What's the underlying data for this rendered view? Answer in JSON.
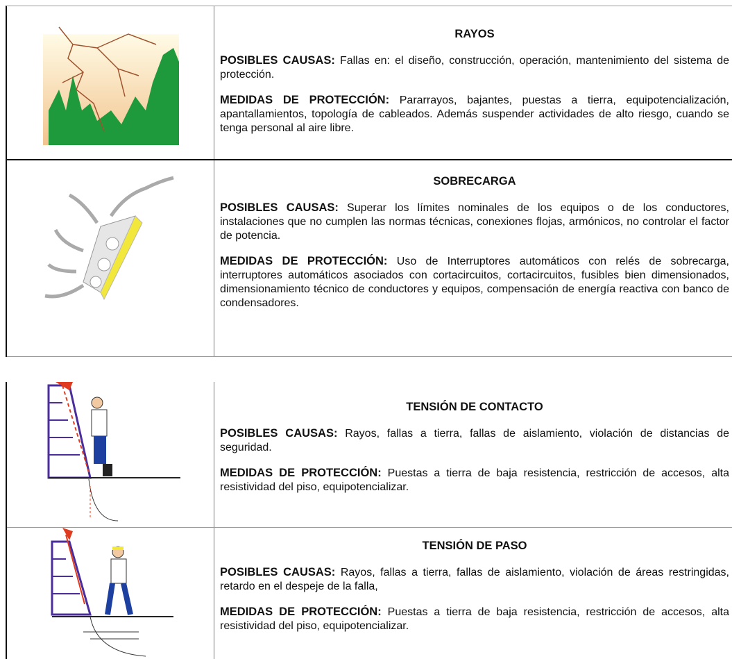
{
  "table": {
    "rows": [
      {
        "title": "RAYOS",
        "causes_label": "POSIBLES CAUSAS:",
        "causes_text": "Fallas en: el diseño, construcción, operación, mantenimiento del sistema de protección.",
        "measures_label": "MEDIDAS DE PROTECCIÓN:",
        "measures_text": "Pararrayos, bajantes, puestas a tierra, equipotencialización, apantallamientos, topología de cableados. Además suspender actividades de alto riesgo, cuando se tenga personal al aire libre."
      },
      {
        "title": "SOBRECARGA",
        "causes_label": "POSIBLES CAUSAS:",
        "causes_text": "Superar los límites nominales de los equipos o de los conductores, instalaciones que no cumplen las normas técnicas, conexiones flojas, armónicos, no controlar el factor de potencia.",
        "measures_label": "MEDIDAS DE PROTECCIÓN:",
        "measures_text": "Uso de Interruptores automáticos con relés de sobrecarga, interruptores automáticos asociados con cortacircuitos, cortacircuitos, fusibles bien dimensionados, dimensionamiento técnico de conductores y equipos, compensación de energía reactiva con banco de condensadores."
      },
      {
        "title": "TENSIÓN DE CONTACTO",
        "causes_label": "POSIBLES CAUSAS:",
        "causes_text": "Rayos, fallas a tierra, fallas de aislamiento, violación de distancias de seguridad.",
        "measures_label": "MEDIDAS DE PROTECCIÓN:",
        "measures_text": "Puestas a tierra de baja resistencia, restricción de accesos, alta resistividad del piso, equipotencializar."
      },
      {
        "title": "TENSIÓN DE PASO",
        "causes_label": "POSIBLES CAUSAS:",
        "causes_text": "Rayos, fallas a tierra, fallas de aislamiento, violación de áreas restringidas, retardo en el despeje de la falla,",
        "measures_label": "MEDIDAS DE PROTECCIÓN:",
        "measures_text": "Puestas a tierra de baja resistencia, restricción de accesos, alta resistividad del piso, equipotencializar."
      }
    ]
  }
}
